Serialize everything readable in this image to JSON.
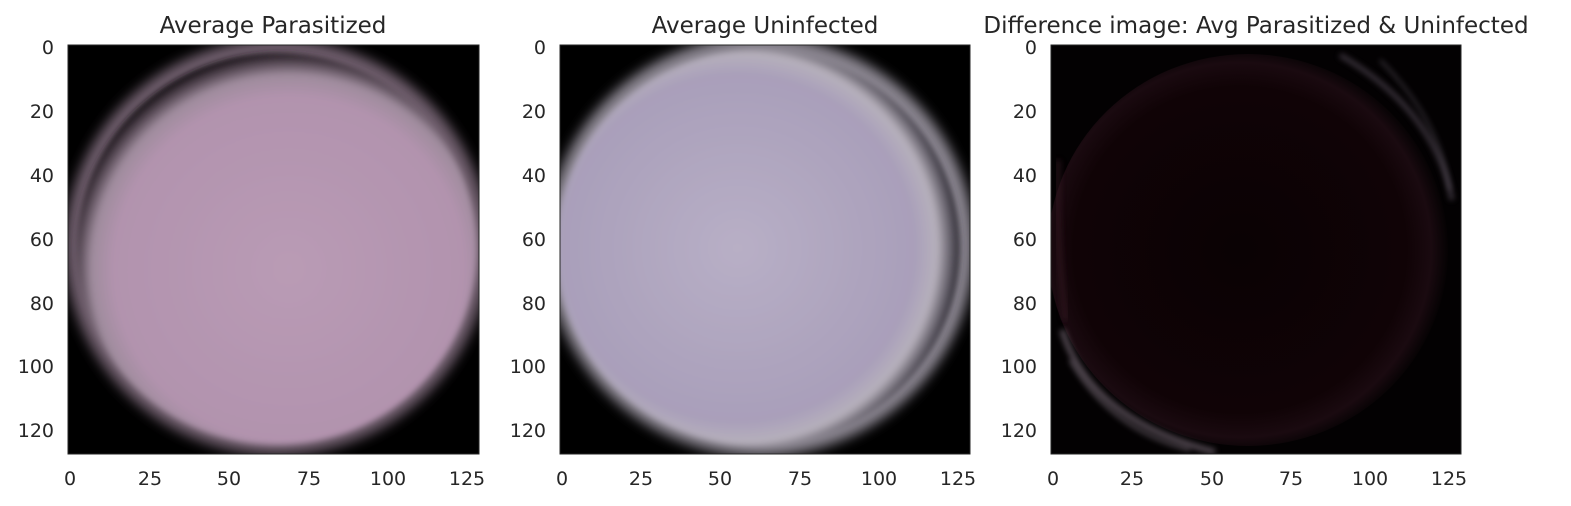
{
  "panels": [
    {
      "title": "Average Parasitized",
      "kind": "parasitized",
      "colors": {
        "center": "#b99bb5",
        "mid": "#b293ae",
        "edge": "#000000"
      },
      "xticks": [
        "0",
        "25",
        "50",
        "75",
        "100",
        "125"
      ],
      "yticks": [
        "0",
        "20",
        "40",
        "60",
        "80",
        "100",
        "120"
      ]
    },
    {
      "title": "Average Uninfected",
      "kind": "uninfected",
      "colors": {
        "center": "#b8afc6",
        "mid": "#a99fba",
        "edge": "#000000"
      },
      "xticks": [
        "0",
        "25",
        "50",
        "75",
        "100",
        "125"
      ],
      "yticks": [
        "0",
        "20",
        "40",
        "60",
        "80",
        "100",
        "120"
      ]
    },
    {
      "title": "Difference image: Avg Parasitized & Uninfected",
      "kind": "difference",
      "colors": {
        "center": "#0a0204",
        "mid": "#140508",
        "edge": "#7a6a78"
      },
      "xticks": [
        "0",
        "25",
        "50",
        "75",
        "100",
        "125"
      ],
      "yticks": [
        "0",
        "20",
        "40",
        "60",
        "80",
        "100",
        "120"
      ]
    }
  ]
}
